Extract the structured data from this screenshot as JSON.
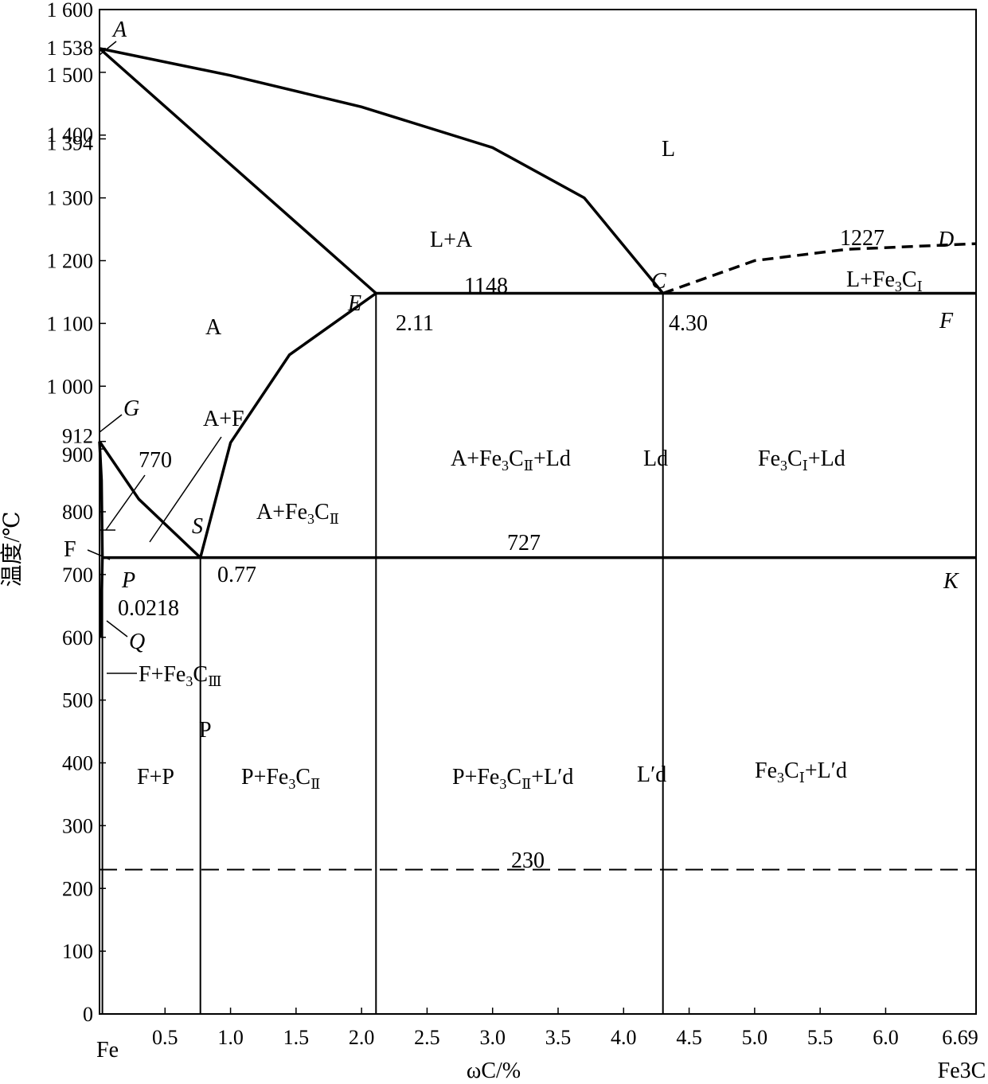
{
  "chart_data": {
    "type": "phase-diagram",
    "title": "",
    "xlabel": "ωC/%",
    "ylabel": "温度/℃",
    "x_left_label": "Fe",
    "x_right_label": "Fe3C",
    "xlim": [
      0,
      6.69
    ],
    "ylim": [
      0,
      1600
    ],
    "x_ticks": [
      "0.5",
      "1.0",
      "1.5",
      "2.0",
      "2.5",
      "3.0",
      "3.5",
      "4.0",
      "4.5",
      "5.0",
      "5.5",
      "6.0",
      "6.69"
    ],
    "x_tick_values": [
      0.5,
      1.0,
      1.5,
      2.0,
      2.5,
      3.0,
      3.5,
      4.0,
      4.5,
      5.0,
      5.5,
      6.0,
      6.69
    ],
    "y_ticks": [
      {
        "v": 0,
        "t": "0"
      },
      {
        "v": 100,
        "t": "100"
      },
      {
        "v": 200,
        "t": "200"
      },
      {
        "v": 300,
        "t": "300"
      },
      {
        "v": 400,
        "t": "400"
      },
      {
        "v": 500,
        "t": "500"
      },
      {
        "v": 600,
        "t": "600"
      },
      {
        "v": 700,
        "t": "700"
      },
      {
        "v": 800,
        "t": "800"
      },
      {
        "v": 900,
        "t": "900"
      },
      {
        "v": 912,
        "t": "912"
      },
      {
        "v": 1000,
        "t": "1 000"
      },
      {
        "v": 1100,
        "t": "1 100"
      },
      {
        "v": 1200,
        "t": "1 200"
      },
      {
        "v": 1300,
        "t": "1 300"
      },
      {
        "v": 1394,
        "t": "1 394"
      },
      {
        "v": 1400,
        "t": "1 400"
      },
      {
        "v": 1500,
        "t": "1 500"
      },
      {
        "v": 1538,
        "t": "1 538"
      },
      {
        "v": 1600,
        "t": "1 600"
      }
    ],
    "points": [
      {
        "name": "A",
        "x": 0,
        "y": 1538
      },
      {
        "name": "C",
        "x": 4.3,
        "y": 1148
      },
      {
        "name": "D",
        "x": 6.69,
        "y": 1227
      },
      {
        "name": "E",
        "x": 2.11,
        "y": 1148
      },
      {
        "name": "F",
        "x": 6.69,
        "y": 1148
      },
      {
        "name": "G",
        "x": 0,
        "y": 912
      },
      {
        "name": "K",
        "x": 6.69,
        "y": 727
      },
      {
        "name": "P",
        "x": 0.0218,
        "y": 727
      },
      {
        "name": "Q",
        "x": 0.0057,
        "y": 600
      },
      {
        "name": "S",
        "x": 0.77,
        "y": 727
      }
    ],
    "value_labels": [
      "1227",
      "1148",
      "2.11",
      "4.30",
      "770",
      "727",
      "0.77",
      "0.0218",
      "230"
    ],
    "regions": [
      {
        "key": "l",
        "base": "L",
        "sub": ""
      },
      {
        "key": "la",
        "base": "L+A",
        "sub": ""
      },
      {
        "key": "lfe3c",
        "base": "L+Fe",
        "tail": "C",
        "sub": "Ⅰ"
      },
      {
        "key": "a",
        "base": "A",
        "sub": ""
      },
      {
        "key": "af",
        "base": "A+F",
        "sub": ""
      },
      {
        "key": "afe3c2",
        "base": "A+Fe",
        "tail": "C",
        "sub": "Ⅱ"
      },
      {
        "key": "afe3c2ld",
        "base": "A+Fe",
        "tail": "C",
        "sub": "Ⅱ",
        "rest": "+Ld"
      },
      {
        "key": "ld",
        "base": "Ld",
        "sub": ""
      },
      {
        "key": "fe3c1ld",
        "base": "Fe",
        "tail": "C",
        "sub": "Ⅰ",
        "rest": "+Ld"
      },
      {
        "key": "f",
        "base": "F",
        "sub": ""
      },
      {
        "key": "ffe3c3",
        "base": "F+Fe",
        "tail": "C",
        "sub": "Ⅲ"
      },
      {
        "key": "p",
        "base": "P",
        "sub": ""
      },
      {
        "key": "fp",
        "base": "F+P",
        "sub": ""
      },
      {
        "key": "pfe3c2",
        "base": "P+Fe",
        "tail": "C",
        "sub": "Ⅱ"
      },
      {
        "key": "pfe3c2ld",
        "base": "P+Fe",
        "tail": "C",
        "sub": "Ⅱ",
        "rest": "+L′d"
      },
      {
        "key": "lpd",
        "base": "L′d",
        "sub": ""
      },
      {
        "key": "fe3c1lpd",
        "base": "Fe",
        "tail": "C",
        "sub": "Ⅰ",
        "rest": "+L′d"
      }
    ],
    "lines": [
      {
        "name": "liquidus-AC",
        "style": "solid",
        "pts": [
          [
            0,
            1538
          ],
          [
            1,
            1495
          ],
          [
            2,
            1445
          ],
          [
            3,
            1380
          ],
          [
            3.7,
            1300
          ],
          [
            4.3,
            1148
          ]
        ]
      },
      {
        "name": "solidus-AE",
        "style": "solid",
        "pts": [
          [
            0,
            1538
          ],
          [
            2.11,
            1148
          ]
        ]
      },
      {
        "name": "liquidus-CD",
        "style": "dashed",
        "pts": [
          [
            4.3,
            1148
          ],
          [
            5,
            1200
          ],
          [
            5.7,
            1218
          ],
          [
            6.69,
            1227
          ]
        ]
      },
      {
        "name": "eutectic-ECF",
        "style": "solid",
        "pts": [
          [
            2.11,
            1148
          ],
          [
            6.69,
            1148
          ]
        ]
      },
      {
        "name": "acm-ES",
        "style": "solid",
        "pts": [
          [
            2.11,
            1148
          ],
          [
            1.45,
            1050
          ],
          [
            1.0,
            910
          ],
          [
            0.77,
            727
          ]
        ]
      },
      {
        "name": "a3-GS",
        "style": "solid",
        "pts": [
          [
            0,
            912
          ],
          [
            0.3,
            820
          ],
          [
            0.77,
            727
          ]
        ]
      },
      {
        "name": "GP",
        "style": "solid",
        "pts": [
          [
            0,
            912
          ],
          [
            0.015,
            850
          ],
          [
            0.0218,
            727
          ]
        ]
      },
      {
        "name": "PQ",
        "style": "solid",
        "pts": [
          [
            0.0218,
            727
          ],
          [
            0.015,
            660
          ],
          [
            0.0057,
            600
          ]
        ]
      },
      {
        "name": "eutectoid-PSK",
        "style": "solid",
        "pts": [
          [
            0.0218,
            727
          ],
          [
            6.69,
            727
          ]
        ]
      },
      {
        "name": "vertical-P",
        "style": "solid",
        "pts": [
          [
            0.0218,
            727
          ],
          [
            0.0218,
            0
          ]
        ]
      },
      {
        "name": "vertical-S",
        "style": "solid",
        "pts": [
          [
            0.77,
            727
          ],
          [
            0.77,
            0
          ]
        ]
      },
      {
        "name": "vertical-E",
        "style": "solid",
        "pts": [
          [
            2.11,
            1148
          ],
          [
            2.11,
            0
          ]
        ]
      },
      {
        "name": "vertical-C",
        "style": "solid",
        "pts": [
          [
            4.3,
            1148
          ],
          [
            4.3,
            0
          ]
        ]
      },
      {
        "name": "line-230",
        "style": "dashed",
        "pts": [
          [
            0,
            230
          ],
          [
            6.69,
            230
          ]
        ]
      }
    ]
  }
}
